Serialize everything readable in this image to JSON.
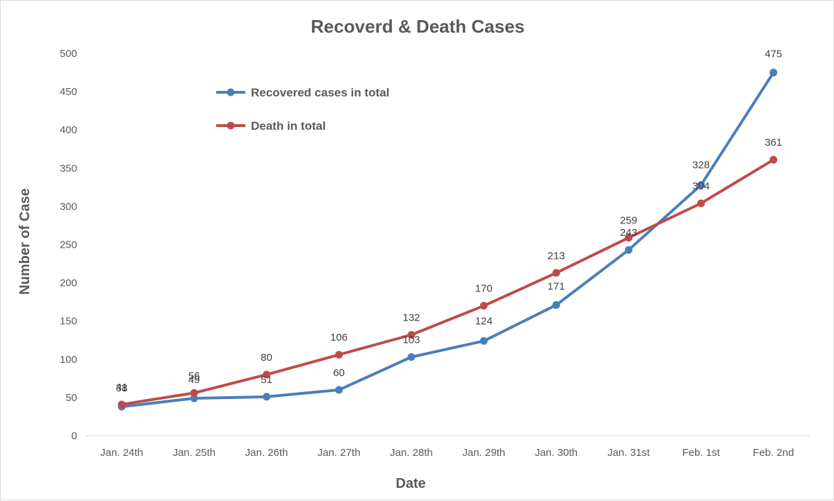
{
  "chart_data": {
    "type": "line",
    "title": "Recoverd & Death Cases",
    "xlabel": "Date",
    "ylabel": "Number of Case",
    "categories": [
      "Jan. 24th",
      "Jan. 25th",
      "Jan. 26th",
      "Jan. 27th",
      "Jan. 28th",
      "Jan. 29th",
      "Jan. 30th",
      "Jan. 31st",
      "Feb. 1st",
      "Feb. 2nd"
    ],
    "ylim": [
      0,
      500
    ],
    "yticks": [
      0,
      50,
      100,
      150,
      200,
      250,
      300,
      350,
      400,
      450,
      500
    ],
    "grid": false,
    "legend_position": "top-left",
    "series": [
      {
        "name": "Recovered cases in total",
        "color": "#4a7ebb",
        "values": [
          38,
          49,
          51,
          60,
          103,
          124,
          171,
          243,
          328,
          475
        ]
      },
      {
        "name": "Death in total",
        "color": "#be4b48",
        "values": [
          41,
          56,
          80,
          106,
          132,
          170,
          213,
          259,
          304,
          361
        ]
      }
    ]
  }
}
